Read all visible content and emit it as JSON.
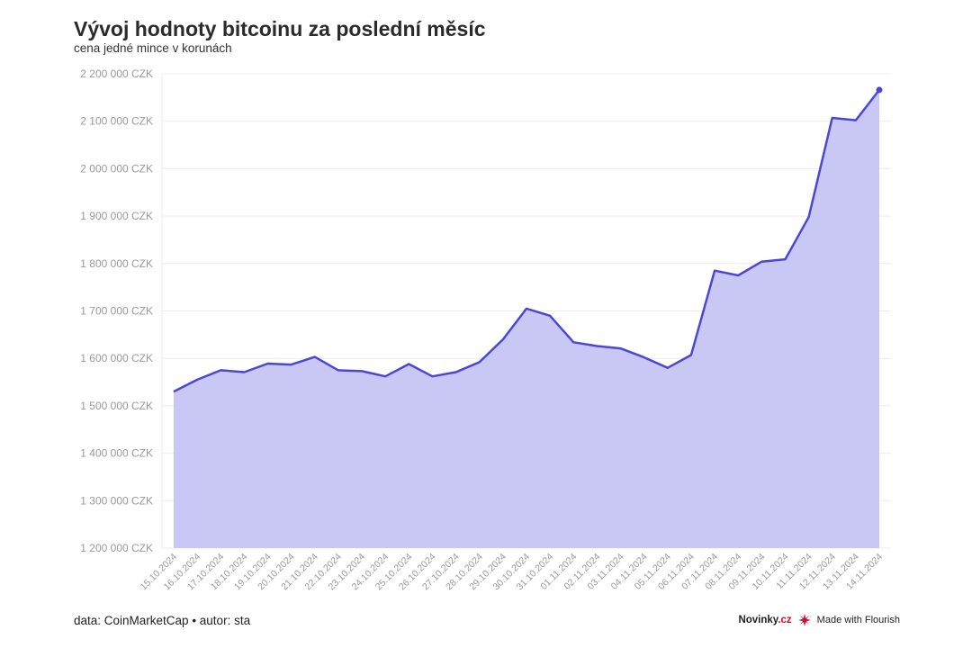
{
  "header": {
    "title": "Vývoj hodnoty bitcoinu za poslední měsíc",
    "subtitle": "cena jedné mince v korunách"
  },
  "footer": {
    "source": "data: CoinMarketCap • autor: sta",
    "brand_prefix": "Novinky",
    "brand_suffix": ".cz",
    "made_with": "Made with Flourish"
  },
  "chart_data": {
    "type": "area",
    "title": "Vývoj hodnoty bitcoinu za poslední měsíc",
    "subtitle": "cena jedné mince v korunách",
    "xlabel": "",
    "ylabel": "",
    "ylim": [
      1200000,
      2200000
    ],
    "y_ticks": [
      1200000,
      1300000,
      1400000,
      1500000,
      1600000,
      1700000,
      1800000,
      1900000,
      2000000,
      2100000,
      2200000
    ],
    "y_tick_labels": [
      "1 200 000 CZK",
      "1 300 000 CZK",
      "1 400 000 CZK",
      "1 500 000 CZK",
      "1 600 000 CZK",
      "1 700 000 CZK",
      "1 800 000 CZK",
      "1 900 000 CZK",
      "2 000 000 CZK",
      "2 100 000 CZK",
      "2 200 000 CZK"
    ],
    "categories": [
      "15.10.2024",
      "16.10.2024",
      "17.10.2024",
      "18.10.2024",
      "19.10.2024",
      "20.10.2024",
      "21.10.2024",
      "22.10.2024",
      "23.10.2024",
      "24.10.2024",
      "25.10.2024",
      "26.10.2024",
      "27.10.2024",
      "28.10.2024",
      "29.10.2024",
      "30.10.2024",
      "31.10.2024",
      "01.11.2024",
      "02.11.2024",
      "03.11.2024",
      "04.11.2024",
      "05.11.2024",
      "06.11.2024",
      "07.11.2024",
      "08.11.2024",
      "09.11.2024",
      "10.11.2024",
      "11.11.2024",
      "12.11.2024",
      "13.11.2024",
      "14.11.2024"
    ],
    "values": [
      1530000,
      1555000,
      1575000,
      1571000,
      1589000,
      1587000,
      1603000,
      1575000,
      1573000,
      1562000,
      1588000,
      1562000,
      1571000,
      1592000,
      1640000,
      1705000,
      1690000,
      1634000,
      1626000,
      1621000,
      1602000,
      1580000,
      1607000,
      1785000,
      1775000,
      1804000,
      1809000,
      1898000,
      2107000,
      2102000,
      2166000
    ],
    "grid": true,
    "legend": "none",
    "colors": {
      "line": "#4b47d6",
      "fill": "#c9c8f5",
      "grid": "#ececec",
      "tick_text": "#9a9a9a"
    }
  }
}
